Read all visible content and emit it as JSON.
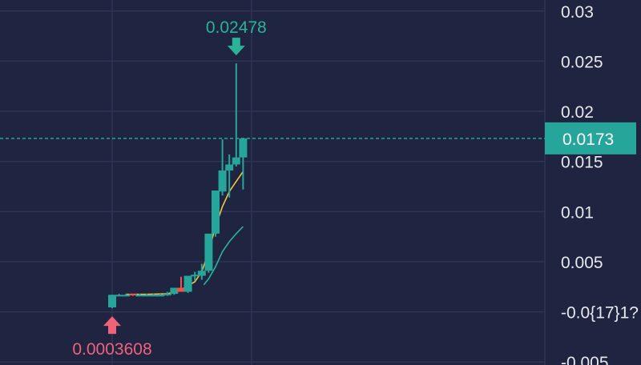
{
  "colors": {
    "background": "#1f2440",
    "grid": "#2e3455",
    "up": "#26a69a",
    "down": "#ef5350",
    "ma_fast": "#f5c542",
    "ma_slow": "#2bb39a",
    "axis_text": "#e8e8ee",
    "high_label": "#2bb39a",
    "low_label": "#f0627a",
    "price_tag_bg": "#26a69a",
    "price_tag_text": "#ffffff"
  },
  "chart_data": {
    "type": "candlestick",
    "y_ticks": [
      "0.03",
      "0.025",
      "0.02",
      "0.015",
      "0.01",
      "0.005",
      "-0.0{17}1?",
      "-0.005"
    ],
    "y_tick_values": [
      0.03,
      0.025,
      0.02,
      0.015,
      0.01,
      0.005,
      0,
      -0.005
    ],
    "ylim": [
      -0.0053,
      0.0311
    ],
    "grid": true,
    "current_price": {
      "value": 0.0173,
      "label": "0.0173"
    },
    "high_marker": {
      "label": "0.02478",
      "value": 0.02478
    },
    "low_marker": {
      "label": "0.0003608",
      "value": 0.0003608
    },
    "candles": [
      {
        "o": 0.00045,
        "h": 0.0017,
        "l": 0.00036,
        "c": 0.0017
      },
      {
        "o": 0.0017,
        "h": 0.0018,
        "l": 0.0016,
        "c": 0.0017
      },
      {
        "o": 0.0017,
        "h": 0.0018,
        "l": 0.0016,
        "c": 0.0017
      },
      {
        "o": 0.0018,
        "h": 0.0018,
        "l": 0.0016,
        "c": 0.0017
      },
      {
        "o": 0.0017,
        "h": 0.0018,
        "l": 0.0016,
        "c": 0.0017
      },
      {
        "o": 0.0017,
        "h": 0.0018,
        "l": 0.0016,
        "c": 0.0017
      },
      {
        "o": 0.0017,
        "h": 0.0018,
        "l": 0.0016,
        "c": 0.0017
      },
      {
        "o": 0.0017,
        "h": 0.0018,
        "l": 0.0016,
        "c": 0.0017
      },
      {
        "o": 0.0017,
        "h": 0.002,
        "l": 0.0016,
        "c": 0.0018
      },
      {
        "o": 0.0018,
        "h": 0.0024,
        "l": 0.0017,
        "c": 0.0024
      },
      {
        "o": 0.0024,
        "h": 0.0035,
        "l": 0.002,
        "c": 0.002
      },
      {
        "o": 0.002,
        "h": 0.0036,
        "l": 0.0019,
        "c": 0.0036
      },
      {
        "o": 0.0036,
        "h": 0.004,
        "l": 0.0031,
        "c": 0.0037
      },
      {
        "o": 0.0036,
        "h": 0.0048,
        "l": 0.0032,
        "c": 0.0041
      },
      {
        "o": 0.0041,
        "h": 0.0078,
        "l": 0.0039,
        "c": 0.0078
      },
      {
        "o": 0.0078,
        "h": 0.0121,
        "l": 0.0075,
        "c": 0.0121
      },
      {
        "o": 0.012,
        "h": 0.0172,
        "l": 0.0116,
        "c": 0.0141
      },
      {
        "o": 0.0141,
        "h": 0.0157,
        "l": 0.0114,
        "c": 0.0147
      },
      {
        "o": 0.0147,
        "h": 0.02478,
        "l": 0.0145,
        "c": 0.0154
      },
      {
        "o": 0.0154,
        "h": 0.0173,
        "l": 0.0122,
        "c": 0.0173
      }
    ],
    "ma_fast": [
      [
        2,
        0.00175
      ],
      [
        5,
        0.00175
      ],
      [
        8,
        0.0018
      ],
      [
        10,
        0.0022
      ],
      [
        12,
        0.003
      ],
      [
        13,
        0.004
      ],
      [
        14,
        0.006
      ],
      [
        15,
        0.0085
      ],
      [
        16,
        0.0105
      ],
      [
        17,
        0.012
      ],
      [
        18,
        0.013
      ],
      [
        19,
        0.014
      ]
    ],
    "ma_slow": [
      [
        13.3,
        0.0027
      ],
      [
        14,
        0.0033
      ],
      [
        15,
        0.0045
      ],
      [
        16,
        0.006
      ],
      [
        17,
        0.007
      ],
      [
        18,
        0.0078
      ],
      [
        19,
        0.0085
      ]
    ]
  }
}
